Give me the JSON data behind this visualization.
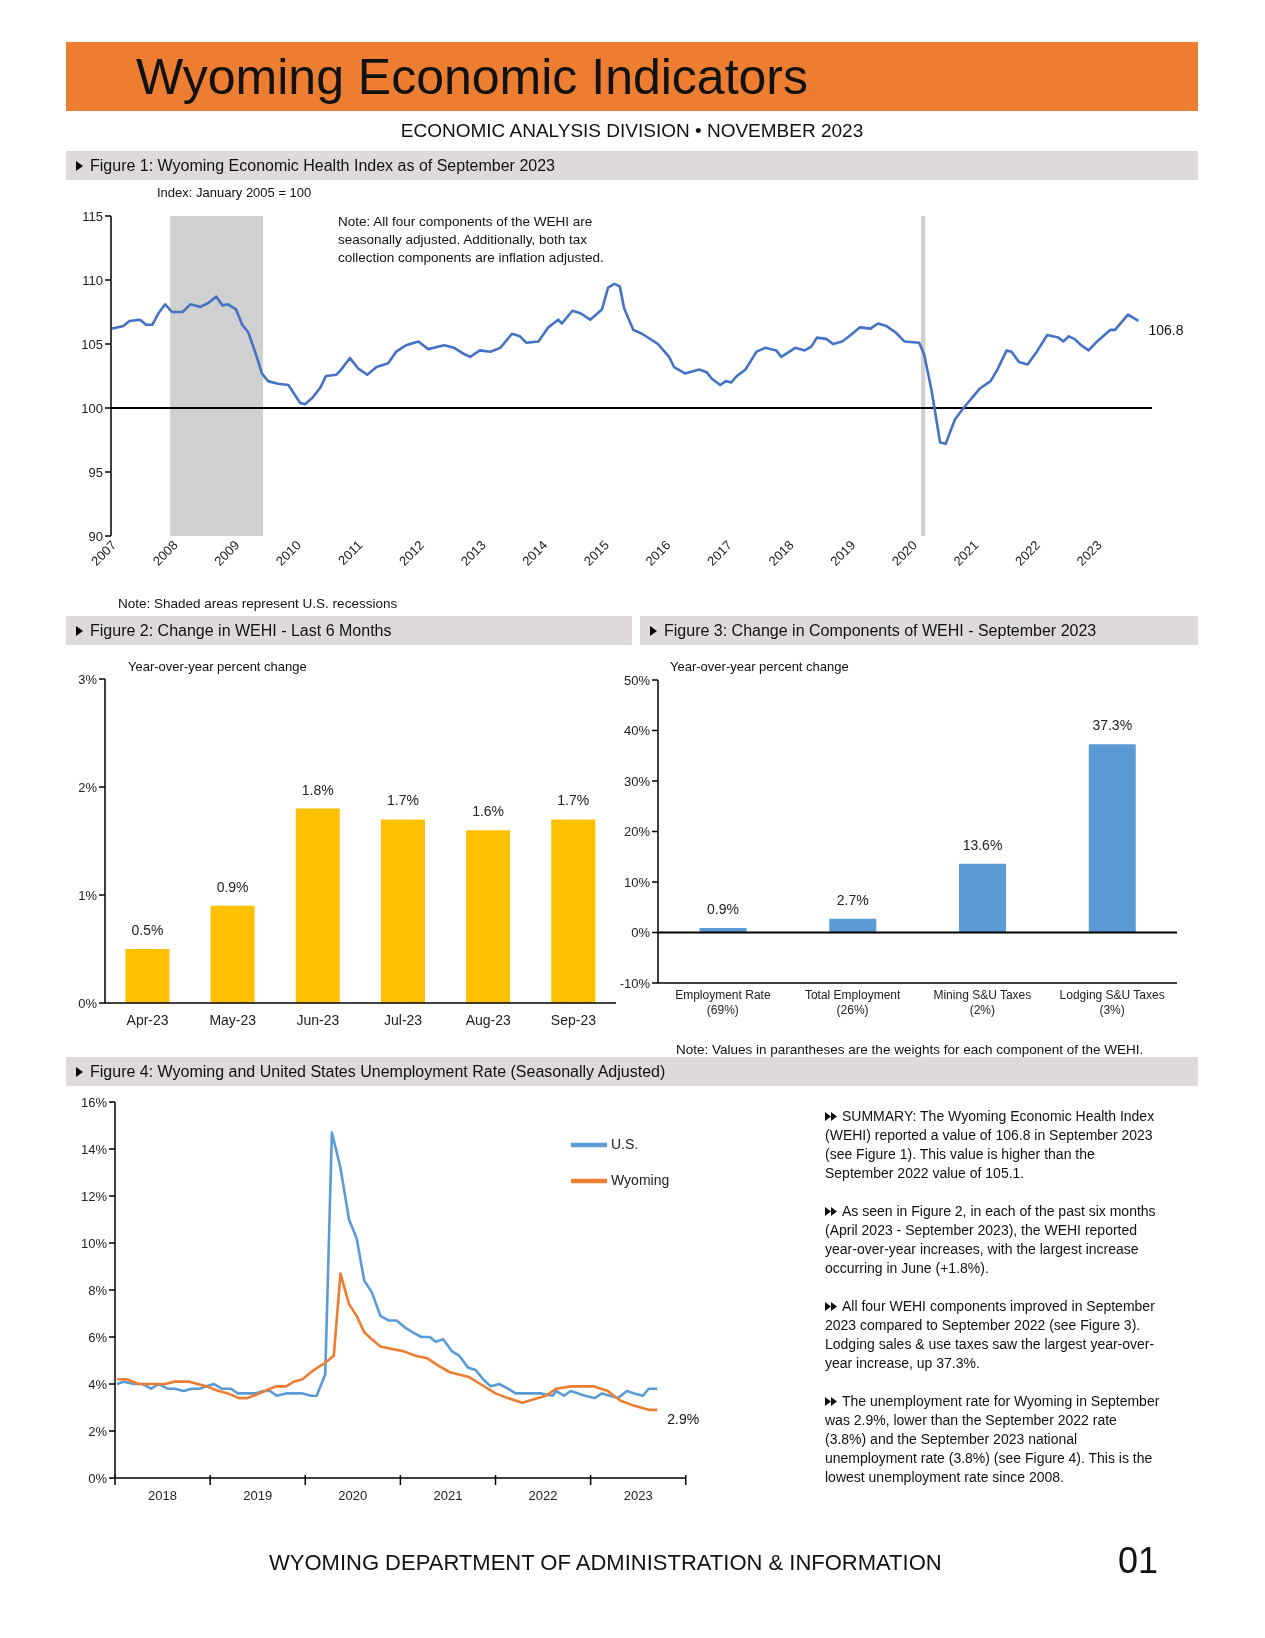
{
  "chart_data": [
    {
      "type": "other",
      "title": "Wyoming Economic Indicators",
      "subtitle": "ECONOMIC ANALYSIS DIVISION • NOVEMBER 2023"
    },
    {
      "type": "line",
      "title": "Figure 1: Wyoming Economic Health Index as of September 2023",
      "ylabel": "Index: January 2005 = 100",
      "series": [
        {
          "color": "#4472c4",
          "x": [
            2007.02,
            2007.2,
            2007.3,
            2007.47,
            2007.57,
            2007.67,
            2007.77,
            2007.88,
            2007.99,
            2008.16,
            2008.29,
            2008.45,
            2008.58,
            2008.71,
            2008.81,
            2008.9,
            2009.03,
            2009.13,
            2009.23,
            2009.36,
            2009.45,
            2009.55,
            2009.71,
            2009.88,
            2010.07,
            2010.15,
            2010.27,
            2010.4,
            2010.49,
            2010.66,
            2010.72,
            2010.88,
            2011.01,
            2011.16,
            2011.31,
            2011.5,
            2011.63,
            2011.79,
            2011.99,
            2012.15,
            2012.41,
            2012.57,
            2012.7,
            2012.83,
            2012.99,
            2013.16,
            2013.32,
            2013.51,
            2013.64,
            2013.74,
            2013.94,
            2014.1,
            2014.26,
            2014.32,
            2014.49,
            2014.62,
            2014.78,
            2014.97,
            2015.07,
            2015.17,
            2015.26,
            2015.33,
            2015.48,
            2015.62,
            2015.88,
            2016.06,
            2016.14,
            2016.32,
            2016.55,
            2016.67,
            2016.75,
            2016.89,
            2016.98,
            2017.07,
            2017.16,
            2017.3,
            2017.48,
            2017.62,
            2017.8,
            2017.88,
            2018.11,
            2018.26,
            2018.37,
            2018.46,
            2018.61,
            2018.72,
            2018.87,
            2019.01,
            2019.16,
            2019.33,
            2019.45,
            2019.59,
            2019.74,
            2019.88,
            2020.12,
            2020.2,
            2020.32,
            2020.46,
            2020.55,
            2020.7,
            2020.84,
            2021.1,
            2021.28,
            2021.39,
            2021.54,
            2021.62,
            2021.74,
            2021.88,
            2022.03,
            2022.2,
            2022.38,
            2022.46,
            2022.55,
            2022.64,
            2022.75,
            2022.87,
            2023.01,
            2023.22,
            2023.3,
            2023.51,
            2023.68
          ],
          "values": [
            106.2,
            106.4,
            106.8,
            106.9,
            106.5,
            106.5,
            107.4,
            108.1,
            107.5,
            107.5,
            108.1,
            107.9,
            108.2,
            108.7,
            108.0,
            108.1,
            107.7,
            106.5,
            105.9,
            104.1,
            102.7,
            102.1,
            101.9,
            101.8,
            100.4,
            100.3,
            100.8,
            101.6,
            102.5,
            102.6,
            102.9,
            103.9,
            103.1,
            102.6,
            103.2,
            103.5,
            104.4,
            104.9,
            105.2,
            104.6,
            104.9,
            104.7,
            104.3,
            104.0,
            104.5,
            104.4,
            104.7,
            105.8,
            105.6,
            105.1,
            105.2,
            106.3,
            106.9,
            106.6,
            107.6,
            107.4,
            106.9,
            107.7,
            109.4,
            109.7,
            109.5,
            107.8,
            106.1,
            105.8,
            105.0,
            104.0,
            103.2,
            102.7,
            103.0,
            102.8,
            102.3,
            101.8,
            102.1,
            102.0,
            102.5,
            103.0,
            104.4,
            104.7,
            104.5,
            104.0,
            104.7,
            104.5,
            104.8,
            105.5,
            105.4,
            105.0,
            105.2,
            105.7,
            106.3,
            106.2,
            106.6,
            106.4,
            105.9,
            105.2,
            105.1,
            104.2,
            101.4,
            97.3,
            97.2,
            99.1,
            100.0,
            101.5,
            102.1,
            103.0,
            104.5,
            104.4,
            103.6,
            103.4,
            104.4,
            105.7,
            105.5,
            105.2,
            105.6,
            105.4,
            104.9,
            104.5,
            105.2,
            106.1,
            106.1,
            107.3,
            106.8
          ]
        }
      ],
      "xlim": [
        2007,
        2023.9
      ],
      "xticks": [
        2007,
        2008,
        2009,
        2010,
        2011,
        2012,
        2013,
        2014,
        2015,
        2016,
        2017,
        2018,
        2019,
        2020,
        2021,
        2022,
        2023
      ],
      "ylim": [
        90,
        115
      ],
      "yticks": [
        90,
        95,
        100,
        105,
        110,
        115
      ],
      "bands": [
        {
          "axis": "x",
          "from": 2007.96,
          "to": 2009.47,
          "color": "#d0d0d0"
        },
        {
          "axis": "x",
          "from": 2020.15,
          "to": 2020.22,
          "color": "#d0d0d0"
        }
      ],
      "ref_lines": [
        {
          "axis": "y",
          "value": 100,
          "color": "#000000"
        }
      ],
      "annotations": [
        "Note: All four components of the WEHI are seasonally adjusted. Additionally, both tax collection components are inflation adjusted.",
        {
          "text": "106.8",
          "x": 2023.68,
          "y": 106.8
        },
        "Note: Shaded areas represent U.S. recessions"
      ]
    },
    {
      "type": "bar",
      "title": "Figure 2: Change in WEHI - Last 6 Months",
      "ylabel": "Year-over-year percent change",
      "categories": [
        "Apr-23",
        "May-23",
        "Jun-23",
        "Jul-23",
        "Aug-23",
        "Sep-23"
      ],
      "values": [
        0.5,
        0.9,
        1.8,
        1.7,
        1.6,
        1.7
      ],
      "color": "#ffc000",
      "value_labels": [
        "0.5%",
        "0.9%",
        "1.8%",
        "1.7%",
        "1.6%",
        "1.7%"
      ],
      "ylim": [
        0,
        3
      ],
      "yticks": [
        {
          "value": 0,
          "label": "0%"
        },
        {
          "value": 1,
          "label": "1%"
        },
        {
          "value": 2,
          "label": "2%"
        },
        {
          "value": 3,
          "label": "3%"
        }
      ]
    },
    {
      "type": "bar",
      "title": "Figure 3: Change in Components of WEHI - September 2023",
      "ylabel": "Year-over-year percent change",
      "categories": [
        "Employment Rate (69%)",
        "Total Employment (26%)",
        "Mining S&U Taxes (2%)",
        "Lodging S&U Taxes (3%)"
      ],
      "values": [
        0.9,
        2.7,
        13.6,
        37.3
      ],
      "color": "#5b9bd5",
      "value_labels": [
        "0.9%",
        "2.7%",
        "13.6%",
        "37.3%"
      ],
      "ylim": [
        -10,
        50
      ],
      "yticks": [
        {
          "value": -10,
          "label": "-10%"
        },
        {
          "value": 0,
          "label": "0%"
        },
        {
          "value": 10,
          "label": "10%"
        },
        {
          "value": 20,
          "label": "20%"
        },
        {
          "value": 30,
          "label": "30%"
        },
        {
          "value": 40,
          "label": "40%"
        },
        {
          "value": 50,
          "label": "50%"
        }
      ],
      "ref_lines": [
        {
          "axis": "y",
          "value": 0,
          "color": "#000000"
        }
      ],
      "annotations": [
        "Note: Values in parantheses are the weights for each component of the WEHI."
      ]
    },
    {
      "type": "line",
      "title": "Figure 4: Wyoming and United States Unemployment Rate (Seasonally Adjusted)",
      "series": [
        {
          "name": "U.S.",
          "color": "#5b9bd5",
          "x": [
            2018.02,
            2018.09,
            2018.2,
            2018.29,
            2018.38,
            2018.46,
            2018.55,
            2018.63,
            2018.72,
            2018.81,
            2018.89,
            2018.96,
            2019.04,
            2019.12,
            2019.22,
            2019.29,
            2019.39,
            2019.47,
            2019.56,
            2019.63,
            2019.7,
            2019.8,
            2019.97,
            2020.06,
            2020.12,
            2020.21,
            2020.28,
            2020.37,
            2020.46,
            2020.54,
            2020.62,
            2020.7,
            2020.79,
            2020.88,
            2020.96,
            2021.05,
            2021.13,
            2021.22,
            2021.31,
            2021.37,
            2021.45,
            2021.54,
            2021.62,
            2021.71,
            2021.79,
            2021.87,
            2021.95,
            2022.04,
            2022.13,
            2022.21,
            2022.47,
            2022.6,
            2022.64,
            2022.72,
            2022.79,
            2022.94,
            2023.04,
            2023.12,
            2023.2,
            2023.29,
            2023.38,
            2023.46,
            2023.55,
            2023.61,
            2023.7
          ],
          "values": [
            4.0,
            4.1,
            4.0,
            4.0,
            3.8,
            4.0,
            3.8,
            3.8,
            3.7,
            3.8,
            3.8,
            3.9,
            4.0,
            3.8,
            3.8,
            3.6,
            3.6,
            3.6,
            3.7,
            3.7,
            3.5,
            3.6,
            3.6,
            3.5,
            3.5,
            4.4,
            14.7,
            13.2,
            11.0,
            10.2,
            8.4,
            7.9,
            6.9,
            6.7,
            6.7,
            6.4,
            6.2,
            6.0,
            6.0,
            5.8,
            5.9,
            5.4,
            5.2,
            4.7,
            4.6,
            4.2,
            3.9,
            4.0,
            3.8,
            3.6,
            3.6,
            3.5,
            3.7,
            3.5,
            3.7,
            3.5,
            3.4,
            3.6,
            3.5,
            3.4,
            3.7,
            3.6,
            3.5,
            3.8,
            3.8
          ]
        },
        {
          "name": "Wyoming",
          "color": "#ed7d31",
          "x": [
            2018.02,
            2018.12,
            2018.25,
            2018.38,
            2018.53,
            2018.62,
            2018.78,
            2018.96,
            2019.09,
            2019.19,
            2019.3,
            2019.39,
            2019.52,
            2019.63,
            2019.69,
            2019.8,
            2019.88,
            2019.97,
            2020.06,
            2020.13,
            2020.21,
            2020.3,
            2020.37,
            2020.46,
            2020.54,
            2020.62,
            2020.7,
            2020.79,
            2020.9,
            2021.03,
            2021.16,
            2021.28,
            2021.39,
            2021.52,
            2021.72,
            2021.84,
            2022.0,
            2022.13,
            2022.28,
            2022.53,
            2022.64,
            2022.79,
            2023.03,
            2023.18,
            2023.31,
            2023.44,
            2023.61,
            2023.7
          ],
          "values": [
            4.2,
            4.2,
            4.0,
            4.0,
            4.0,
            4.1,
            4.1,
            3.9,
            3.7,
            3.6,
            3.4,
            3.4,
            3.6,
            3.8,
            3.9,
            3.9,
            4.1,
            4.2,
            4.5,
            4.7,
            4.9,
            5.2,
            8.7,
            7.4,
            6.9,
            6.2,
            5.9,
            5.6,
            5.5,
            5.4,
            5.2,
            5.1,
            4.8,
            4.5,
            4.3,
            4.0,
            3.6,
            3.4,
            3.2,
            3.5,
            3.8,
            3.9,
            3.9,
            3.7,
            3.3,
            3.1,
            2.9,
            2.9
          ]
        }
      ],
      "xlim": [
        2018,
        2024
      ],
      "xticks": [
        {
          "value": 2018,
          "label": null
        },
        {
          "value": 2018.5,
          "label": "2018"
        },
        {
          "value": 2019,
          "label": null
        },
        {
          "value": 2019.5,
          "label": "2019"
        },
        {
          "value": 2020,
          "label": null
        },
        {
          "value": 2020.5,
          "label": "2020"
        },
        {
          "value": 2021,
          "label": null
        },
        {
          "value": 2021.5,
          "label": "2021"
        },
        {
          "value": 2022,
          "label": null
        },
        {
          "value": 2022.5,
          "label": "2022"
        },
        {
          "value": 2023,
          "label": null
        },
        {
          "value": 2023.5,
          "label": "2023"
        },
        {
          "value": 2024,
          "label": null
        }
      ],
      "ylim": [
        0,
        16
      ],
      "yticks": [
        {
          "value": 0,
          "label": "0%"
        },
        {
          "value": 2,
          "label": "2%"
        },
        {
          "value": 4,
          "label": "4%"
        },
        {
          "value": 6,
          "label": "6%"
        },
        {
          "value": 8,
          "label": "8%"
        },
        {
          "value": 10,
          "label": "10%"
        },
        {
          "value": 12,
          "label": "12%"
        },
        {
          "value": 14,
          "label": "14%"
        },
        {
          "value": 16,
          "label": "16%"
        }
      ],
      "legend": "top right",
      "annotations": [
        {
          "text": "2.9%",
          "x": 2023.7,
          "y": 2.9
        }
      ]
    },
    {
      "type": "other",
      "annotations": [
        "SUMMARY: The Wyoming Economic Health Index (WEHI) reported a value of 106.8 in September 2023 (see Figure 1). This value is higher than the September 2022 value of 105.1.",
        "As seen in Figure 2, in each of the past six months (April 2023 - September 2023), the WEHI reported year-over-year increases, with the largest increase occurring in June (+1.8%).",
        "All four WEHI components improved in September 2023 compared to September 2022 (see Figure 3). Lodging sales & use taxes saw the largest year-over-year increase, up 37.3%.",
        "The unemployment rate for Wyoming in September was 2.9%,  lower than the September 2022 rate (3.8%) and the September 2023 national unemployment rate (3.8%) (see Figure 4). This is the lowest unemployment rate since 2008."
      ]
    },
    {
      "type": "other",
      "annotations": [
        "WYOMING DEPARTMENT OF ADMINISTRATION & INFORMATION",
        "01"
      ]
    }
  ]
}
